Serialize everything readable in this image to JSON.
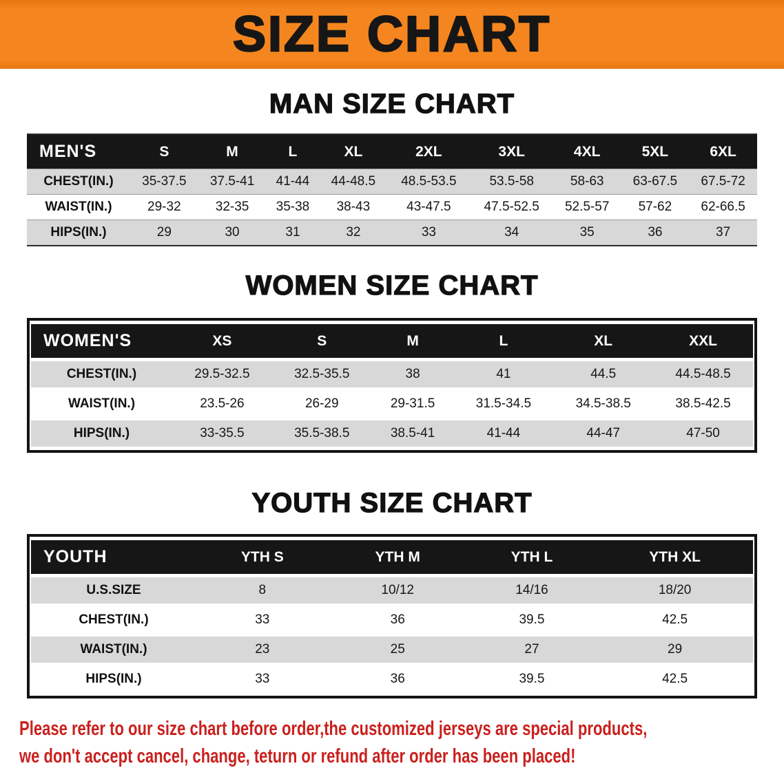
{
  "banner": {
    "title": "SIZE CHART"
  },
  "colors": {
    "banner_bg": "#F5861F",
    "table_header_bg": "#161616",
    "row_stripe_bg": "#D8D8D8",
    "note_text": "#C9201D"
  },
  "men": {
    "heading": "MAN SIZE CHART",
    "corner": "MEN'S",
    "columns": [
      "S",
      "M",
      "L",
      "XL",
      "2XL",
      "3XL",
      "4XL",
      "5XL",
      "6XL"
    ],
    "rows": [
      {
        "label": "CHEST(IN.)",
        "values": [
          "35-37.5",
          "37.5-41",
          "41-44",
          "44-48.5",
          "48.5-53.5",
          "53.5-58",
          "58-63",
          "63-67.5",
          "67.5-72"
        ]
      },
      {
        "label": "WAIST(IN.)",
        "values": [
          "29-32",
          "32-35",
          "35-38",
          "38-43",
          "43-47.5",
          "47.5-52.5",
          "52.5-57",
          "57-62",
          "62-66.5"
        ]
      },
      {
        "label": "HIPS(IN.)",
        "values": [
          "29",
          "30",
          "31",
          "32",
          "33",
          "34",
          "35",
          "36",
          "37"
        ]
      }
    ]
  },
  "women": {
    "heading": "WOMEN SIZE CHART",
    "corner": "WOMEN'S",
    "columns": [
      "XS",
      "S",
      "M",
      "L",
      "XL",
      "XXL"
    ],
    "rows": [
      {
        "label": "CHEST(IN.)",
        "values": [
          "29.5-32.5",
          "32.5-35.5",
          "38",
          "41",
          "44.5",
          "44.5-48.5"
        ]
      },
      {
        "label": "WAIST(IN.)",
        "values": [
          "23.5-26",
          "26-29",
          "29-31.5",
          "31.5-34.5",
          "34.5-38.5",
          "38.5-42.5"
        ]
      },
      {
        "label": "HIPS(IN.)",
        "values": [
          "33-35.5",
          "35.5-38.5",
          "38.5-41",
          "41-44",
          "44-47",
          "47-50"
        ]
      }
    ]
  },
  "youth": {
    "heading": "YOUTH SIZE CHART",
    "corner": "YOUTH",
    "columns": [
      "YTH S",
      "YTH M",
      "YTH L",
      "YTH XL"
    ],
    "rows": [
      {
        "label": "U.S.SIZE",
        "values": [
          "8",
          "10/12",
          "14/16",
          "18/20"
        ]
      },
      {
        "label": "CHEST(IN.)",
        "values": [
          "33",
          "36",
          "39.5",
          "42.5"
        ]
      },
      {
        "label": "WAIST(IN.)",
        "values": [
          "23",
          "25",
          "27",
          "29"
        ]
      },
      {
        "label": "HIPS(IN.)",
        "values": [
          "33",
          "36",
          "39.5",
          "42.5"
        ]
      }
    ]
  },
  "note": {
    "line1": "Please refer to our size chart before order,the customized jerseys are special products,",
    "line2": "we don't accept cancel, change, teturn or refund after order has been placed!"
  }
}
